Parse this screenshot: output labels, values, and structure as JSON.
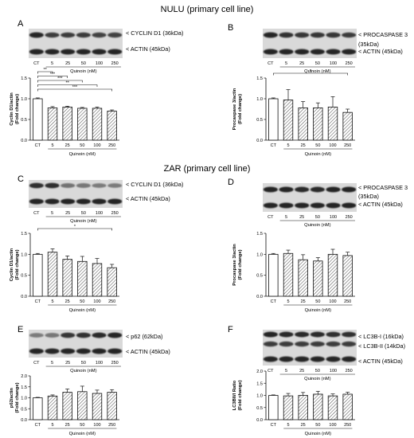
{
  "sections": [
    {
      "title": "NULU (primary cell line)"
    },
    {
      "title": "ZAR (primary cell line)"
    }
  ],
  "colors": {
    "bar_edge": "#111111",
    "hatch": "#5a5a5a",
    "band_dark": "#1e1e1e",
    "band_mid": "#4a4a4a",
    "blot_bg": "#d9d9d9"
  },
  "chart_data": [
    {
      "panel": "A",
      "type": "bar",
      "categories": [
        "CT",
        "5",
        "25",
        "50",
        "100",
        "250"
      ],
      "values": [
        1.0,
        0.78,
        0.8,
        0.77,
        0.77,
        0.7
      ],
      "errors": [
        0.02,
        0.03,
        0.02,
        0.02,
        0.03,
        0.03
      ],
      "ylabel": [
        "Cyclin D1/actin",
        "(Fold change)"
      ],
      "xlabel": "Quinoin (nM)",
      "ylim": [
        0,
        1.5
      ],
      "yticks": [
        0.0,
        0.5,
        1.0,
        1.5
      ],
      "yticklabels": [
        "0.0",
        "0.5",
        "1.0",
        "1.5"
      ],
      "blot_labels": [
        "< CYCLIN D1 (36kDa)",
        "< ACTIN (45kDa)"
      ],
      "blot_intensity": [
        [
          1.0,
          0.8,
          0.8,
          0.8,
          0.75,
          0.75
        ],
        [
          1.0,
          1.0,
          1.0,
          1.0,
          1.0,
          1.0
        ]
      ],
      "significance": [
        {
          "from": 0,
          "to": 1,
          "label": "**"
        },
        {
          "from": 0,
          "to": 2,
          "label": "***"
        },
        {
          "from": 0,
          "to": 3,
          "label": "***"
        },
        {
          "from": 0,
          "to": 4,
          "label": "**"
        },
        {
          "from": 0,
          "to": 5,
          "label": "***"
        }
      ]
    },
    {
      "panel": "B",
      "type": "bar",
      "categories": [
        "CT",
        "5",
        "25",
        "50",
        "100",
        "250"
      ],
      "values": [
        1.0,
        0.97,
        0.78,
        0.78,
        0.8,
        0.67
      ],
      "errors": [
        0.02,
        0.25,
        0.15,
        0.12,
        0.25,
        0.08
      ],
      "ylabel": [
        "Procaspase 3/actin",
        "(Fold change)"
      ],
      "xlabel": "Quinoin (nM)",
      "ylim": [
        0,
        1.5
      ],
      "yticks": [
        0.0,
        0.5,
        1.0,
        1.5
      ],
      "yticklabels": [
        "0.0",
        "0.5",
        "1.0",
        "1.5"
      ],
      "blot_labels": [
        "< PROCASPASE 3",
        "(35kDa)",
        "< ACTIN (45kDa)"
      ],
      "blot_intensity": [
        [
          1.0,
          0.9,
          0.85,
          0.85,
          0.85,
          0.8
        ],
        [
          1.0,
          1.0,
          1.0,
          1.0,
          1.0,
          1.0
        ]
      ],
      "significance": [
        {
          "from": 0,
          "to": 5,
          "label": "*"
        }
      ]
    },
    {
      "panel": "C",
      "type": "bar",
      "categories": [
        "CT",
        "5",
        "25",
        "50",
        "100",
        "250"
      ],
      "values": [
        1.0,
        1.05,
        0.88,
        0.83,
        0.78,
        0.68
      ],
      "errors": [
        0.02,
        0.08,
        0.08,
        0.12,
        0.12,
        0.08
      ],
      "ylabel": [
        "Cyclin D1/actin",
        "(Fold change)"
      ],
      "xlabel": "Quinoin (nM)",
      "ylim": [
        0,
        1.5
      ],
      "yticks": [
        0.0,
        0.5,
        1.0,
        1.5
      ],
      "yticklabels": [
        "0.0",
        "0.5",
        "1.0",
        "1.5"
      ],
      "blot_labels": [
        "< CYCLIN D1 (36kDa)",
        "< ACTIN (45kDa)"
      ],
      "blot_intensity": [
        [
          0.9,
          0.9,
          0.6,
          0.55,
          0.5,
          0.5
        ],
        [
          1.0,
          1.0,
          1.0,
          1.0,
          1.0,
          1.0
        ]
      ],
      "significance": [
        {
          "from": 0,
          "to": 5,
          "label": "*"
        }
      ]
    },
    {
      "panel": "D",
      "type": "bar",
      "categories": [
        "CT",
        "5",
        "25",
        "50",
        "100",
        "250"
      ],
      "values": [
        1.0,
        1.02,
        0.87,
        0.84,
        1.0,
        0.97
      ],
      "errors": [
        0.02,
        0.08,
        0.12,
        0.08,
        0.12,
        0.08
      ],
      "ylabel": [
        "Procaspase 3/actin",
        "(Fold change)"
      ],
      "xlabel": "Quinoin (nM)",
      "ylim": [
        0,
        1.5
      ],
      "yticks": [
        0.0,
        0.5,
        1.0,
        1.5
      ],
      "yticklabels": [
        "0.0",
        "0.5",
        "1.0",
        "1.5"
      ],
      "blot_labels": [
        "< PROCASPASE 3",
        "(35kDa)",
        "< ACTIN (45kDa)"
      ],
      "blot_intensity": [
        [
          1.0,
          1.0,
          0.95,
          0.95,
          1.0,
          1.0
        ],
        [
          1.0,
          1.0,
          1.0,
          1.0,
          1.0,
          1.0
        ]
      ],
      "significance": []
    },
    {
      "panel": "E",
      "type": "bar",
      "categories": [
        "CT",
        "5",
        "25",
        "50",
        "100",
        "250"
      ],
      "values": [
        1.0,
        1.08,
        1.25,
        1.28,
        1.2,
        1.25
      ],
      "errors": [
        0.02,
        0.05,
        0.15,
        0.25,
        0.15,
        0.12
      ],
      "ylabel": [
        "p62/actin",
        "(Fold change)"
      ],
      "xlabel": "Quinoin (nM)",
      "ylim": [
        0,
        2.0
      ],
      "yticks": [
        0.0,
        0.5,
        1.0,
        1.5,
        2.0
      ],
      "yticklabels": [
        "0.0",
        "0.5",
        "1.0",
        "1.5",
        "2.0"
      ],
      "blot_labels": [
        "< p62 (62kDa)",
        "< ACTIN (45kDa)"
      ],
      "blot_intensity": [
        [
          0.5,
          0.55,
          0.85,
          0.9,
          0.95,
          1.0
        ],
        [
          1.0,
          1.0,
          1.0,
          1.0,
          1.0,
          1.0
        ]
      ],
      "significance": []
    },
    {
      "panel": "F",
      "type": "bar",
      "categories": [
        "CT",
        "5",
        "25",
        "50",
        "100",
        "250"
      ],
      "values": [
        1.0,
        0.98,
        1.0,
        1.05,
        0.98,
        1.05
      ],
      "errors": [
        0.02,
        0.1,
        0.12,
        0.12,
        0.08,
        0.08
      ],
      "ylabel": [
        "LC3BII/I Ratio",
        "(Fold change)"
      ],
      "xlabel": "Quinoin (nM)",
      "ylim": [
        0,
        2.0
      ],
      "yticks": [
        0.0,
        0.5,
        1.0,
        1.5,
        2.0
      ],
      "yticklabels": [
        "0.0",
        "0.5",
        "1.0",
        "1.5",
        "2.0"
      ],
      "blot_labels": [
        "< LC3B-I (16kDa)",
        "< LC3B-II (14kDa)",
        "< ACTIN (45kDa)"
      ],
      "blot_intensity": [
        [
          1.0,
          0.95,
          0.95,
          0.95,
          0.9,
          0.9
        ],
        [
          0.8,
          0.8,
          0.8,
          0.8,
          0.8,
          0.8
        ],
        [
          1.0,
          1.0,
          1.0,
          1.0,
          1.0,
          1.0
        ]
      ],
      "significance": []
    }
  ]
}
